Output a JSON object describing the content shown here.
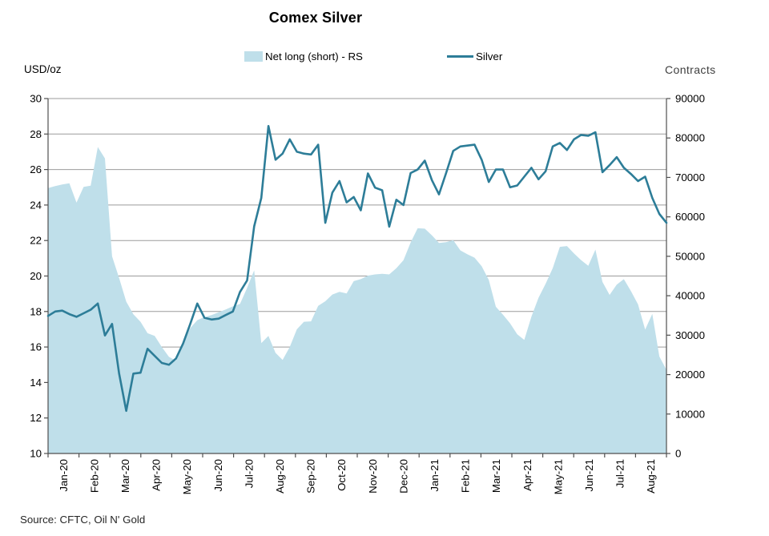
{
  "header": {
    "title": "Comex Silver"
  },
  "legend": [
    {
      "label": "Net long (short) - RS",
      "swatch": "area-swatch"
    },
    {
      "label": "Silver",
      "swatch": "line-swatch"
    }
  ],
  "axes": {
    "left_unit": "USD/oz",
    "right_unit": "Contracts"
  },
  "footer": {
    "source": "Source: CFTC, Oil N' Gold"
  },
  "colors": {
    "area_fill": "#bfdfea",
    "line": "#2d7d98",
    "grid": "#9b9b9b",
    "axis": "#4f4f4f",
    "label": "#000000",
    "muted": "#3f3f3f"
  },
  "chart_data": {
    "type": "area",
    "title": "Comex Silver",
    "x_note": "weekly observations, Jan-2020 to Aug-2021",
    "categories": [
      "Jan-20",
      "Feb-20",
      "Mar-20",
      "Apr-20",
      "May-20",
      "Jun-20",
      "Jul-20",
      "Aug-20",
      "Sep-20",
      "Oct-20",
      "Nov-20",
      "Dec-20",
      "Jan-21",
      "Feb-21",
      "Mar-21",
      "Apr-21",
      "May-21",
      "Jun-21",
      "Jul-21",
      "Aug-21"
    ],
    "left_axis": {
      "label": "USD/oz",
      "min": 10,
      "max": 30,
      "step": 2
    },
    "right_axis": {
      "label": "Contracts",
      "min": 0,
      "max": 90000,
      "step": 10000
    },
    "grid": "horizontal",
    "legend_position": "top",
    "series": [
      {
        "name": "Net long (short) - RS",
        "type": "area",
        "axis": "right",
        "values": [
          67300,
          67800,
          68200,
          68500,
          63600,
          67600,
          67900,
          77700,
          74800,
          50000,
          44500,
          38500,
          35300,
          33400,
          30500,
          29800,
          27000,
          24500,
          23500,
          28000,
          31800,
          33800,
          34600,
          35100,
          35800,
          36500,
          37300,
          37900,
          42000,
          46450,
          28000,
          29800,
          25500,
          23700,
          27000,
          31500,
          33400,
          33500,
          37450,
          38600,
          40300,
          41000,
          40600,
          43700,
          44200,
          45100,
          45400,
          45570,
          45400,
          47000,
          49000,
          53500,
          57100,
          57000,
          55300,
          53400,
          53600,
          54100,
          51500,
          50500,
          49650,
          47500,
          44000,
          37200,
          35200,
          33000,
          30200,
          28800,
          34700,
          39500,
          43000,
          47000,
          52400,
          52600,
          50700,
          49000,
          47600,
          51700,
          43500,
          40200,
          42800,
          44200,
          41200,
          37800,
          31400,
          35400,
          24600,
          21200
        ]
      },
      {
        "name": "Silver",
        "type": "line",
        "axis": "left",
        "values": [
          17.75,
          18.0,
          18.05,
          17.85,
          17.7,
          17.9,
          18.1,
          18.45,
          16.65,
          17.3,
          14.5,
          12.4,
          14.5,
          14.55,
          15.9,
          15.5,
          15.1,
          15.0,
          15.35,
          16.2,
          17.3,
          18.45,
          17.65,
          17.55,
          17.6,
          17.8,
          18.0,
          19.1,
          19.75,
          22.8,
          24.4,
          28.45,
          26.55,
          26.9,
          27.7,
          27.0,
          26.9,
          26.85,
          27.4,
          23.0,
          24.7,
          25.35,
          24.15,
          24.45,
          23.7,
          25.78,
          24.98,
          24.83,
          22.78,
          24.3,
          24.0,
          25.8,
          26.0,
          26.5,
          25.4,
          24.6,
          25.8,
          27.05,
          27.3,
          27.35,
          27.4,
          26.55,
          25.3,
          26.0,
          26.0,
          25.0,
          25.1,
          25.6,
          26.1,
          25.45,
          25.9,
          27.3,
          27.5,
          27.1,
          27.7,
          27.95,
          27.9,
          28.1,
          25.85,
          26.25,
          26.7,
          26.1,
          25.75,
          25.35,
          25.6,
          24.4,
          23.5,
          23.0
        ]
      }
    ]
  }
}
